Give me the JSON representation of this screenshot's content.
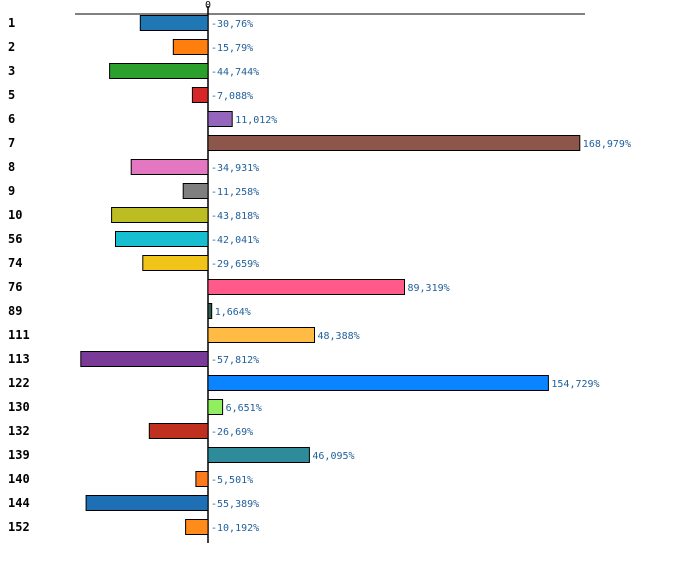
{
  "chart_data": {
    "type": "bar",
    "orientation": "horizontal",
    "title": "",
    "xlabel": "",
    "ylabel": "",
    "zero_tick_label": "0",
    "xlim": [
      -72,
      184
    ],
    "categories": [
      "1",
      "2",
      "3",
      "5",
      "6",
      "7",
      "8",
      "9",
      "10",
      "56",
      "74",
      "76",
      "89",
      "111",
      "113",
      "122",
      "130",
      "132",
      "139",
      "140",
      "144",
      "152"
    ],
    "values": [
      -30.76,
      -15.79,
      -44.744,
      -7.088,
      11.012,
      168.979,
      -34.931,
      -11.258,
      -43.818,
      -42.041,
      -29.659,
      89.319,
      1.664,
      48.388,
      -57.812,
      154.729,
      6.651,
      -26.69,
      46.095,
      -5.501,
      -55.389,
      -10.192
    ],
    "value_labels": [
      "-30,76%",
      "-15,79%",
      "-44,744%",
      "-7,088%",
      "11,012%",
      "168,979%",
      "-34,931%",
      "-11,258%",
      "-43,818%",
      "-42,041%",
      "-29,659%",
      "89,319%",
      "1,664%",
      "48,388%",
      "-57,812%",
      "154,729%",
      "6,651%",
      "-26,69%",
      "46,095%",
      "-5,501%",
      "-55,389%",
      "-10,192%"
    ],
    "colors": [
      "#1f77b4",
      "#ff7f0e",
      "#2ca02c",
      "#d62728",
      "#9467bd",
      "#8c564b",
      "#e377c2",
      "#7f7f7f",
      "#bcbd22",
      "#17becf",
      "#f0c419",
      "#ff5a8a",
      "#2e5e4e",
      "#ffbb44",
      "#7a3b98",
      "#0a84ff",
      "#90ee60",
      "#c0301f",
      "#2e8b9a",
      "#ff7a1a",
      "#1f6fb4",
      "#ff8c1a"
    ]
  }
}
